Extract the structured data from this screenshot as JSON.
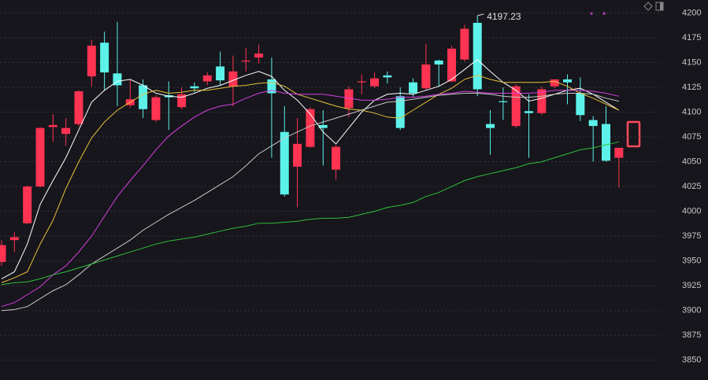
{
  "chart_data": {
    "type": "candlestick",
    "categories": [
      null,
      null,
      null,
      null,
      null,
      null,
      null,
      null,
      null,
      null,
      null,
      null,
      null,
      null,
      null,
      null,
      null,
      null,
      null,
      null,
      null,
      null,
      null,
      null,
      null,
      null,
      null,
      null,
      null,
      null,
      null,
      null,
      null,
      null,
      null,
      null,
      null,
      null,
      null,
      null,
      null,
      null,
      null,
      null,
      null,
      null,
      null,
      null,
      null
    ],
    "open": [
      3949,
      3971,
      3988,
      4025,
      4085,
      4078,
      4088,
      4136,
      4170,
      4139,
      4107,
      4127,
      4092,
      4117,
      4105,
      4126,
      4131,
      4146,
      4126,
      4151,
      4155,
      4133,
      4080,
      4045,
      4065,
      4087,
      4042,
      4104,
      4130,
      4126,
      4137,
      4116,
      4130,
      4124,
      4152,
      4131,
      4153,
      4190,
      4088,
      4111,
      4086,
      4101,
      4099,
      4126,
      4133,
      4119,
      4092,
      4088,
      4054
    ],
    "high": [
      3971,
      3979,
      4026,
      4085,
      4098,
      4094,
      4122,
      4173,
      4181,
      4191,
      4133,
      4133,
      4117,
      4131,
      4125,
      4130,
      4140,
      4161,
      4157,
      4165,
      4168,
      4155,
      4106,
      4094,
      4105,
      4102,
      4067,
      4126,
      4138,
      4140,
      4141,
      4125,
      4134,
      4169,
      4153,
      4167,
      4188,
      4197.23,
      4102,
      4125,
      4128,
      4118,
      4126,
      4130,
      4138,
      4135,
      4096,
      4106,
      4064
    ],
    "low": [
      3945,
      3959,
      3987,
      4024,
      4070,
      4066,
      4086,
      4126,
      4122,
      4106,
      4104,
      4094,
      4090,
      4082,
      4103,
      4120,
      4127,
      4127,
      4106,
      4141,
      4149,
      4054,
      4015,
      4004,
      4064,
      4046,
      4032,
      4095,
      4118,
      4124,
      4129,
      4082,
      4115,
      4122,
      4126,
      4130,
      4151,
      4116,
      4057,
      4092,
      4084,
      4054,
      4097,
      4124,
      4108,
      4091,
      4050,
      4050,
      4024
    ],
    "close": [
      3966,
      3974,
      4025,
      4084,
      4087,
      4084,
      4121,
      4167,
      4140,
      4127,
      4113,
      4103,
      4115,
      4115,
      4118,
      4124,
      4137,
      4132,
      4141,
      4152,
      4159,
      4119,
      4017,
      4068,
      4103,
      4084,
      4065,
      4123,
      4131,
      4134,
      4135,
      4084,
      4119,
      4148,
      4148,
      4164,
      4184,
      4123,
      4084,
      4110,
      4126,
      4099,
      4123,
      4133,
      4130,
      4097,
      4086,
      4051,
      4064
    ],
    "up_color": "#ff3352",
    "down_color": "#5cf2ea",
    "high_label": "4197.23",
    "overlays": [
      {
        "color": "#ffffff",
        "values": [
          3932,
          3939,
          3967,
          4007,
          4031,
          4054,
          4082,
          4110,
          4122,
          4131,
          4133,
          4127,
          4119,
          4116,
          4115,
          4119,
          4124,
          4127,
          4132,
          4137,
          4141,
          4136,
          4122,
          4112,
          4098,
          4080,
          4068,
          4084,
          4100,
          4112,
          4118,
          4119,
          4118,
          4122,
          4126,
          4133,
          4143,
          4153,
          4141,
          4130,
          4122,
          4111,
          4114,
          4118,
          4122,
          4124,
          4118,
          4110,
          4102
        ]
      },
      {
        "color": "#e8c23a",
        "values": [
          3928,
          3933,
          3939,
          3967,
          3991,
          4023,
          4050,
          4074,
          4090,
          4102,
          4110,
          4118,
          4122,
          4119,
          4120,
          4122,
          4122,
          4124,
          4126,
          4127,
          4129,
          4130,
          4126,
          4118,
          4114,
          4110,
          4106,
          4103,
          4102,
          4099,
          4095,
          4094,
          4102,
          4110,
          4118,
          4124,
          4133,
          4137,
          4133,
          4130,
          4130,
          4130,
          4130,
          4131,
          4126,
          4119,
          4114,
          4108,
          4102
        ]
      },
      {
        "color": "#d63ee0",
        "values": [
          3904,
          3908,
          3916,
          3924,
          3936,
          3945,
          3959,
          3975,
          3995,
          4015,
          4031,
          4046,
          4062,
          4076,
          4086,
          4095,
          4102,
          4106,
          4108,
          4114,
          4119,
          4122,
          4119,
          4118,
          4118,
          4118,
          4116,
          4114,
          4112,
          4112,
          4113,
          4115,
          4115,
          4116,
          4118,
          4119,
          4121,
          4120,
          4119,
          4119,
          4119,
          4119,
          4120,
          4122,
          4122,
          4122,
          4121,
          4119,
          4116
        ]
      },
      {
        "color": "#c8c8c8",
        "values": [
          3900,
          3901,
          3904,
          3912,
          3920,
          3926,
          3936,
          3947,
          3955,
          3963,
          3971,
          3981,
          3989,
          3997,
          4004,
          4011,
          4019,
          4027,
          4035,
          4046,
          4058,
          4066,
          4074,
          4080,
          4086,
          4090,
          4094,
          4098,
          4102,
          4106,
          4110,
          4111,
          4113,
          4115,
          4117,
          4118,
          4119,
          4119,
          4118,
          4116,
          4115,
          4115,
          4116,
          4118,
          4119,
          4119,
          4118,
          4114,
          4111
        ]
      },
      {
        "color": "#2fbf3a",
        "values": [
          3926,
          3928,
          3929,
          3932,
          3936,
          3939,
          3943,
          3947,
          3951,
          3955,
          3959,
          3963,
          3967,
          3970,
          3972,
          3974,
          3977,
          3980,
          3983,
          3985,
          3988,
          3988,
          3989,
          3990,
          3992,
          3993,
          3993,
          3994,
          3997,
          4000,
          4004,
          4006,
          4009,
          4015,
          4019,
          4025,
          4031,
          4035,
          4038,
          4041,
          4044,
          4048,
          4050,
          4054,
          4058,
          4062,
          4064,
          4067,
          4070
        ]
      }
    ],
    "ylim": [
      3830,
      4213
    ],
    "yticks": [
      3850,
      3875,
      3900,
      3925,
      3950,
      3975,
      4000,
      4025,
      4050,
      4075,
      4100,
      4125,
      4150,
      4175,
      4200
    ],
    "grid": true
  }
}
